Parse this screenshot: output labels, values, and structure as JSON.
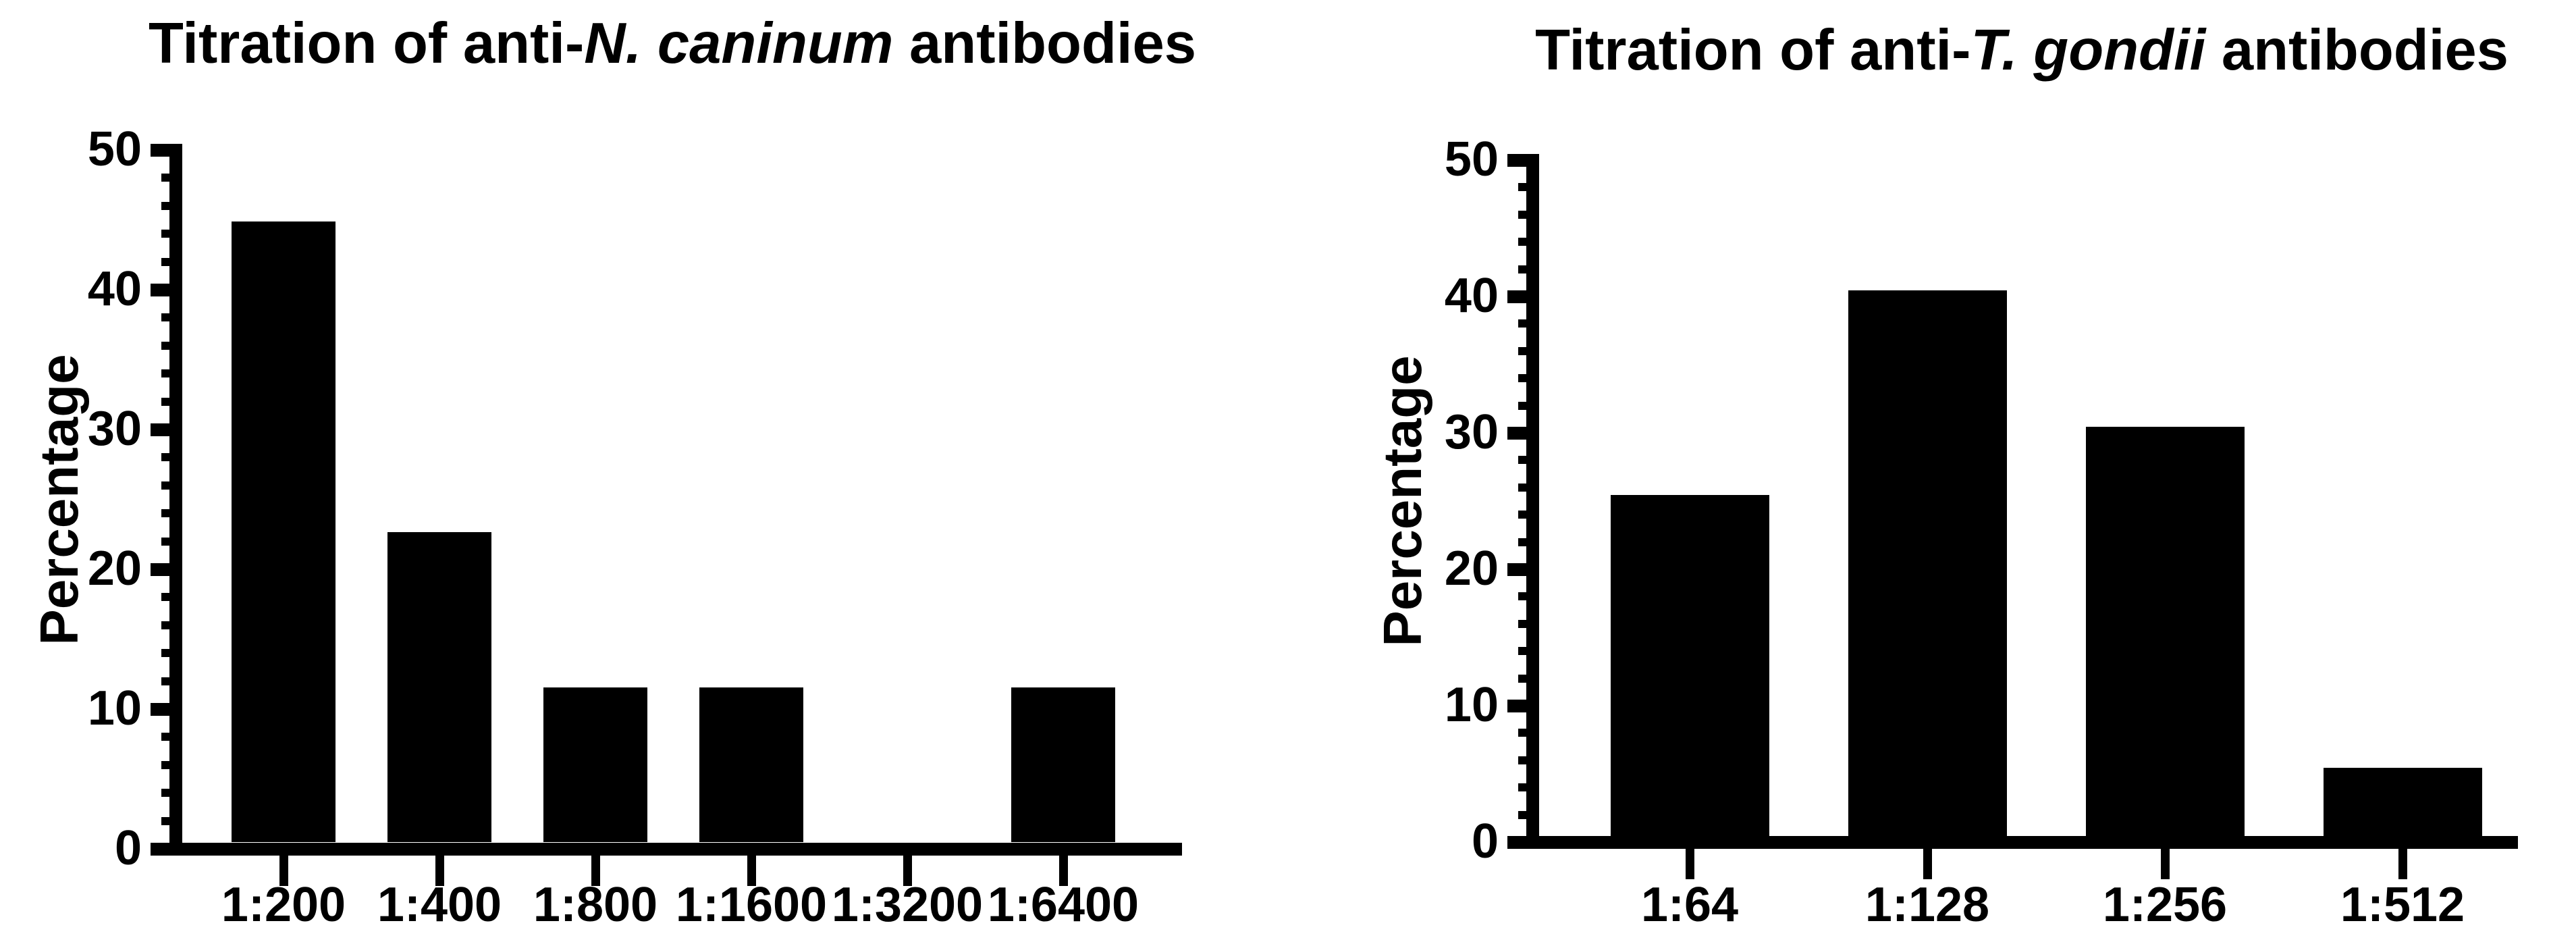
{
  "figure": {
    "background": "#ffffff",
    "ink": "#000000"
  },
  "chart_data": [
    {
      "type": "bar",
      "title": "Titration of anti-N. caninum antibodies",
      "title_parts": [
        {
          "text": "Titration of anti-",
          "italic": false
        },
        {
          "text": "N. caninum",
          "italic": true
        },
        {
          "text": " antibodies",
          "italic": false
        }
      ],
      "ylabel": "Percentage",
      "xlabel": "",
      "categories": [
        "1:200",
        "1:400",
        "1:800",
        "1:1600",
        "1:3200",
        "1:6400"
      ],
      "values": [
        44.4,
        22.2,
        11.1,
        11.1,
        0,
        11.1
      ],
      "ylim": [
        0,
        50
      ],
      "ytick_step_major": 10,
      "ytick_step_minor": 2,
      "ytick_labels": [
        "0",
        "10",
        "20",
        "30",
        "40",
        "50"
      ],
      "bar_color": "#000000",
      "grid": false,
      "legend": null
    },
    {
      "type": "bar",
      "title": "Titration of anti-T. gondii antibodies",
      "title_parts": [
        {
          "text": "Titration of anti-",
          "italic": false
        },
        {
          "text": "T. gondii",
          "italic": true
        },
        {
          "text": " antibodies",
          "italic": false
        }
      ],
      "ylabel": "Percentage",
      "xlabel": "",
      "categories": [
        "1:64",
        "1:128",
        "1:256",
        "1:512"
      ],
      "values": [
        25,
        40,
        30,
        5
      ],
      "ylim": [
        0,
        50
      ],
      "ytick_step_major": 10,
      "ytick_step_minor": 2,
      "ytick_labels": [
        "0",
        "10",
        "20",
        "30",
        "40",
        "50"
      ],
      "bar_color": "#000000",
      "grid": false,
      "legend": null
    }
  ]
}
